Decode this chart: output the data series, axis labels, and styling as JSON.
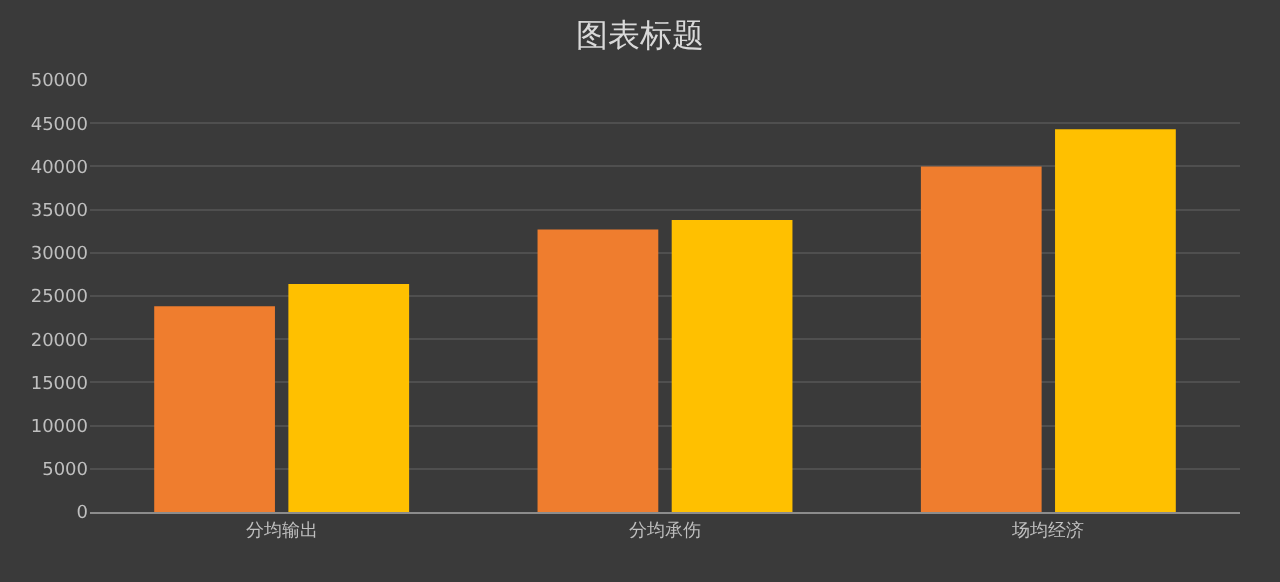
{
  "chart_data": {
    "type": "bar",
    "title": "图表标题",
    "categories": [
      "分均输出",
      "分均承伤",
      "场均经济"
    ],
    "series": [
      {
        "color": "#ef7d2e",
        "values": [
          23800,
          32700,
          40000
        ]
      },
      {
        "color": "#ffc000",
        "values": [
          26400,
          33800,
          44300
        ]
      }
    ],
    "ylim": [
      0,
      50000
    ],
    "yticks": [
      0,
      5000,
      10000,
      15000,
      20000,
      25000,
      30000,
      35000,
      40000,
      45000,
      50000
    ],
    "grid": "y"
  }
}
